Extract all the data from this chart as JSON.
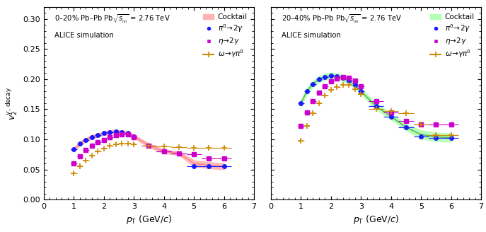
{
  "left_panel": {
    "title_line1": "0–20% Pb–Pb",
    "title_line2": "ALICE simulation",
    "ylim": [
      0.0,
      0.32
    ],
    "xlim": [
      0,
      7
    ],
    "cocktail_color": "#ffb3b3",
    "cocktail_line_color": "#ff8888",
    "pi0_color": "#1a1aff",
    "eta_color": "#cc00cc",
    "omega_color": "#cc8800",
    "pi0_x": [
      1.0,
      1.2,
      1.4,
      1.6,
      1.8,
      2.0,
      2.2,
      2.4,
      2.6,
      2.8,
      3.0,
      3.5,
      4.0,
      4.5,
      5.0,
      5.5,
      6.0
    ],
    "pi0_y": [
      0.083,
      0.093,
      0.099,
      0.104,
      0.107,
      0.11,
      0.112,
      0.113,
      0.112,
      0.11,
      0.105,
      0.09,
      0.08,
      0.077,
      0.055,
      0.055,
      0.055
    ],
    "pi0_xerr": [
      0.1,
      0.1,
      0.1,
      0.1,
      0.1,
      0.1,
      0.1,
      0.1,
      0.1,
      0.1,
      0.1,
      0.25,
      0.25,
      0.25,
      0.25,
      0.25,
      0.25
    ],
    "eta_x": [
      1.0,
      1.2,
      1.4,
      1.6,
      1.8,
      2.0,
      2.2,
      2.4,
      2.6,
      2.8,
      3.0,
      3.5,
      4.0,
      4.5,
      5.0,
      5.5,
      6.0
    ],
    "eta_y": [
      0.06,
      0.072,
      0.082,
      0.09,
      0.095,
      0.099,
      0.103,
      0.107,
      0.108,
      0.108,
      0.104,
      0.09,
      0.08,
      0.077,
      0.075,
      0.068,
      0.068
    ],
    "eta_xerr": [
      0.1,
      0.1,
      0.1,
      0.1,
      0.1,
      0.1,
      0.1,
      0.1,
      0.1,
      0.1,
      0.1,
      0.25,
      0.25,
      0.25,
      0.25,
      0.25,
      0.25
    ],
    "omega_x": [
      1.0,
      1.2,
      1.4,
      1.6,
      1.8,
      2.0,
      2.2,
      2.4,
      2.6,
      2.8,
      3.0,
      3.5,
      4.0,
      4.5,
      5.0,
      5.5,
      6.0
    ],
    "omega_y": [
      0.043,
      0.055,
      0.065,
      0.073,
      0.08,
      0.085,
      0.089,
      0.092,
      0.093,
      0.093,
      0.092,
      0.09,
      0.088,
      0.087,
      0.086,
      0.086,
      0.086
    ],
    "omega_xerr": [
      0.1,
      0.1,
      0.1,
      0.1,
      0.1,
      0.1,
      0.1,
      0.1,
      0.1,
      0.1,
      0.1,
      0.25,
      0.25,
      0.25,
      0.25,
      0.25,
      0.25
    ],
    "cocktail_x": [
      1.0,
      1.2,
      1.4,
      1.6,
      1.8,
      2.0,
      2.2,
      2.4,
      2.6,
      2.8,
      3.0,
      3.5,
      4.0,
      4.5,
      5.0,
      5.5,
      6.0
    ],
    "cocktail_y": [
      0.083,
      0.093,
      0.099,
      0.104,
      0.107,
      0.11,
      0.112,
      0.113,
      0.112,
      0.11,
      0.105,
      0.09,
      0.08,
      0.077,
      0.06,
      0.057,
      0.055
    ],
    "cocktail_err": [
      0.003,
      0.003,
      0.003,
      0.003,
      0.003,
      0.003,
      0.003,
      0.003,
      0.003,
      0.003,
      0.003,
      0.003,
      0.003,
      0.003,
      0.005,
      0.005,
      0.005
    ]
  },
  "right_panel": {
    "title_line1": "20–40% Pb–Pb",
    "title_line2": "ALICE simulation",
    "ylim": [
      0.0,
      0.32
    ],
    "xlim": [
      0,
      7
    ],
    "cocktail_color": "#b3ffb3",
    "cocktail_line_color": "#55bb55",
    "pi0_color": "#1a1aff",
    "eta_color": "#cc00cc",
    "omega_color": "#cc8800",
    "pi0_x": [
      1.0,
      1.2,
      1.4,
      1.6,
      1.8,
      2.0,
      2.2,
      2.4,
      2.6,
      2.8,
      3.0,
      3.5,
      4.0,
      4.5,
      5.0,
      5.5,
      6.0
    ],
    "pi0_y": [
      0.16,
      0.18,
      0.192,
      0.2,
      0.204,
      0.206,
      0.205,
      0.202,
      0.197,
      0.19,
      0.18,
      0.155,
      0.138,
      0.12,
      0.105,
      0.102,
      0.102
    ],
    "pi0_xerr": [
      0.1,
      0.1,
      0.1,
      0.1,
      0.1,
      0.1,
      0.1,
      0.1,
      0.1,
      0.1,
      0.1,
      0.25,
      0.25,
      0.25,
      0.25,
      0.25,
      0.25
    ],
    "eta_x": [
      1.0,
      1.2,
      1.4,
      1.6,
      1.8,
      2.0,
      2.2,
      2.4,
      2.6,
      2.8,
      3.0,
      3.5,
      4.0,
      4.5,
      5.0,
      5.5,
      6.0
    ],
    "eta_y": [
      0.122,
      0.145,
      0.163,
      0.178,
      0.188,
      0.196,
      0.201,
      0.203,
      0.202,
      0.197,
      0.188,
      0.163,
      0.145,
      0.13,
      0.125,
      0.125,
      0.125
    ],
    "eta_xerr": [
      0.1,
      0.1,
      0.1,
      0.1,
      0.1,
      0.1,
      0.1,
      0.1,
      0.1,
      0.1,
      0.1,
      0.25,
      0.25,
      0.25,
      0.25,
      0.25,
      0.25
    ],
    "omega_x": [
      1.0,
      1.2,
      1.4,
      1.6,
      1.8,
      2.0,
      2.2,
      2.4,
      2.6,
      2.8,
      3.0,
      3.5,
      4.0,
      4.5,
      5.0,
      5.5,
      6.0
    ],
    "omega_y": [
      0.098,
      0.122,
      0.143,
      0.16,
      0.173,
      0.182,
      0.187,
      0.191,
      0.19,
      0.184,
      0.175,
      0.15,
      0.147,
      0.143,
      0.125,
      0.107,
      0.107
    ],
    "omega_xerr": [
      0.1,
      0.1,
      0.1,
      0.1,
      0.1,
      0.1,
      0.1,
      0.1,
      0.1,
      0.1,
      0.1,
      0.25,
      0.25,
      0.25,
      0.25,
      0.25,
      0.25
    ],
    "cocktail_x": [
      1.0,
      1.2,
      1.4,
      1.6,
      1.8,
      2.0,
      2.2,
      2.4,
      2.6,
      2.8,
      3.0,
      3.5,
      4.0,
      4.5,
      5.0,
      5.5,
      6.0
    ],
    "cocktail_y": [
      0.16,
      0.18,
      0.192,
      0.2,
      0.204,
      0.206,
      0.205,
      0.202,
      0.197,
      0.19,
      0.18,
      0.155,
      0.138,
      0.12,
      0.108,
      0.104,
      0.103
    ],
    "cocktail_err": [
      0.005,
      0.005,
      0.005,
      0.005,
      0.005,
      0.005,
      0.005,
      0.005,
      0.005,
      0.005,
      0.005,
      0.005,
      0.005,
      0.005,
      0.007,
      0.007,
      0.007
    ]
  }
}
